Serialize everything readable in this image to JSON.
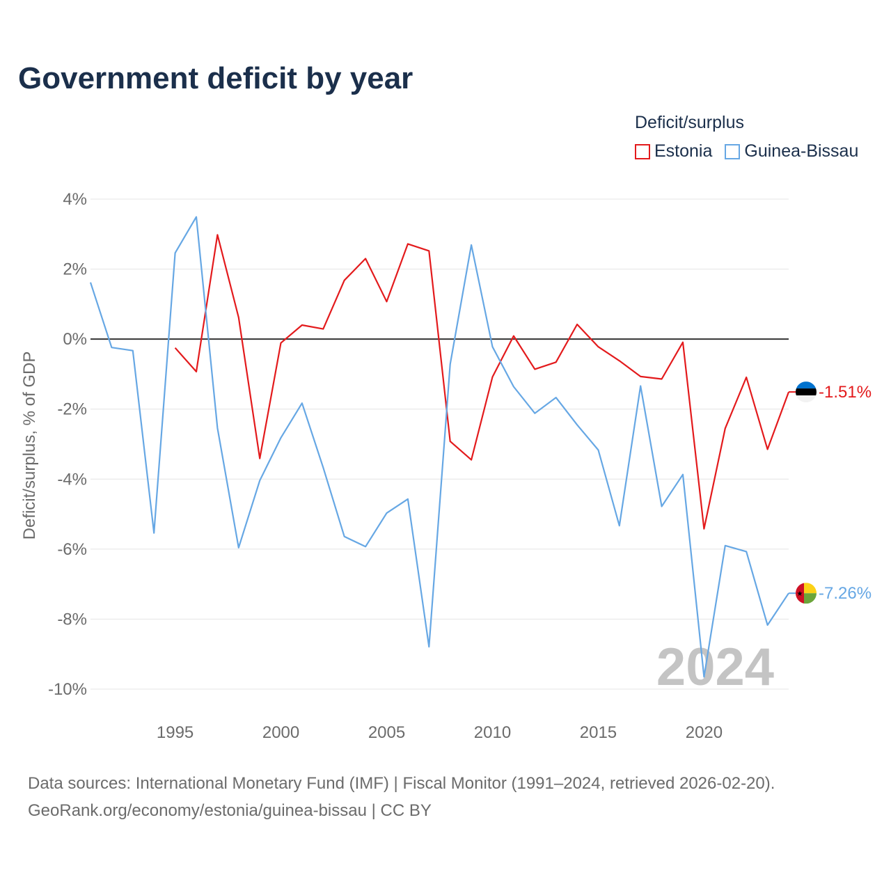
{
  "title": "Government deficit by year",
  "legend": {
    "title": "Deficit/surplus",
    "items": [
      {
        "name": "Estonia",
        "color": "#e31a1c"
      },
      {
        "name": "Guinea-Bissau",
        "color": "#66a7e4"
      }
    ]
  },
  "chart_data": {
    "type": "line",
    "title": "Government deficit by year",
    "ylabel": "Deficit/surplus, % of GDP",
    "xlabel": "",
    "xlim": [
      1991,
      2024
    ],
    "ylim": [
      -10,
      4
    ],
    "x_ticks": [
      "1995",
      "2000",
      "2005",
      "2010",
      "2015",
      "2020"
    ],
    "y_ticks": [
      "4%",
      "2%",
      "0%",
      "-2%",
      "-4%",
      "-6%",
      "-8%",
      "-10%"
    ],
    "year_watermark": "2024",
    "series": [
      {
        "name": "Estonia",
        "color": "#e31a1c",
        "x": [
          1995,
          1996,
          1997,
          1998,
          1999,
          2000,
          2001,
          2002,
          2003,
          2004,
          2005,
          2006,
          2007,
          2008,
          2009,
          2010,
          2011,
          2012,
          2013,
          2014,
          2015,
          2016,
          2017,
          2018,
          2019,
          2020,
          2021,
          2022,
          2023,
          2024
        ],
        "values": [
          -0.25,
          -0.93,
          2.98,
          0.62,
          -3.41,
          -0.11,
          0.4,
          0.29,
          1.68,
          2.3,
          1.07,
          2.72,
          2.52,
          -2.92,
          -3.45,
          -1.08,
          0.09,
          -0.86,
          -0.66,
          0.42,
          -0.22,
          -0.62,
          -1.07,
          -1.14,
          -0.09,
          -5.42,
          -2.55,
          -1.09,
          -3.15,
          -1.51
        ],
        "end_label": "-1.51%"
      },
      {
        "name": "Guinea-Bissau",
        "color": "#66a7e4",
        "x": [
          1991,
          1992,
          1993,
          1994,
          1995,
          1996,
          1997,
          1998,
          1999,
          2000,
          2001,
          2002,
          2003,
          2004,
          2005,
          2006,
          2007,
          2008,
          2009,
          2010,
          2011,
          2012,
          2013,
          2014,
          2015,
          2016,
          2017,
          2018,
          2019,
          2020,
          2021,
          2022,
          2023,
          2024
        ],
        "values": [
          1.62,
          -0.24,
          -0.33,
          -5.54,
          2.46,
          3.49,
          -2.54,
          -5.96,
          -4.04,
          -2.82,
          -1.83,
          -3.67,
          -5.64,
          -5.93,
          -4.97,
          -4.57,
          -8.79,
          -0.72,
          2.69,
          -0.22,
          -1.36,
          -2.12,
          -1.67,
          -2.45,
          -3.17,
          -5.33,
          -1.34,
          -4.78,
          -3.87,
          -9.65,
          -5.9,
          -6.07,
          -8.17,
          -7.26
        ],
        "end_label": "-7.26%"
      }
    ]
  },
  "footer": {
    "line1": "Data sources: International Monetary Fund (IMF) | Fiscal Monitor (1991–2024, retrieved 2026-02-20).",
    "line2": "GeoRank.org/economy/estonia/guinea-bissau | CC BY"
  }
}
